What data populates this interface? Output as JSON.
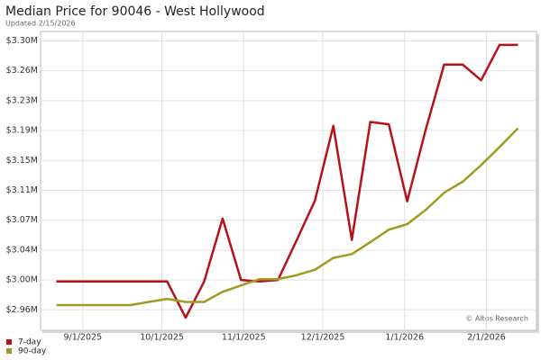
{
  "chart_data": {
    "type": "line",
    "title": "Median Price for 90046 - West Hollywood",
    "subtitle": "Updated 2/15/2026",
    "annotation": "© Altos Research",
    "x": [
      "8/22/2025",
      "8/29/2025",
      "9/5/2025",
      "9/12/2025",
      "9/19/2025",
      "9/26/2025",
      "10/3/2025",
      "10/10/2025",
      "10/17/2025",
      "10/24/2025",
      "10/31/2025",
      "11/7/2025",
      "11/14/2025",
      "11/21/2025",
      "11/28/2025",
      "12/5/2025",
      "12/12/2025",
      "12/19/2025",
      "12/26/2025",
      "1/2/2026",
      "1/9/2026",
      "1/16/2026",
      "1/23/2026",
      "1/30/2026",
      "2/6/2026",
      "2/13/2026"
    ],
    "series": [
      {
        "name": "7-day",
        "color": "#b5121b",
        "values": [
          2.996,
          2.996,
          2.996,
          2.996,
          2.996,
          2.996,
          2.996,
          2.95,
          2.996,
          3.076,
          2.998,
          2.996,
          2.998,
          3.048,
          3.099,
          3.194,
          3.049,
          3.199,
          3.196,
          3.098,
          3.189,
          3.272,
          3.272,
          3.252,
          3.297,
          3.297
        ]
      },
      {
        "name": "90-day",
        "color": "#a09a1e",
        "values": [
          2.966,
          2.966,
          2.966,
          2.966,
          2.966,
          2.97,
          2.974,
          2.97,
          2.97,
          2.983,
          2.991,
          2.999,
          2.999,
          3.004,
          3.011,
          3.026,
          3.031,
          3.046,
          3.062,
          3.069,
          3.087,
          3.109,
          3.123,
          3.144,
          3.167,
          3.191
        ]
      }
    ],
    "xlim": [
      "8/16/2025",
      "2/20/2026"
    ],
    "xticks": [
      "9/1/2025",
      "10/1/2025",
      "11/1/2025",
      "12/1/2025",
      "1/1/2026",
      "2/1/2026"
    ],
    "ylim": [
      2.934,
      3.314
    ],
    "yticks": [
      {
        "value": 2.96,
        "label": "$2.96M"
      },
      {
        "value": 2.998,
        "label": "$3.00M"
      },
      {
        "value": 3.036,
        "label": "$3.04M"
      },
      {
        "value": 3.074,
        "label": "$3.07M"
      },
      {
        "value": 3.112,
        "label": "$3.11M"
      },
      {
        "value": 3.15,
        "label": "$3.15M"
      },
      {
        "value": 3.188,
        "label": "$3.19M"
      },
      {
        "value": 3.226,
        "label": "$3.23M"
      },
      {
        "value": 3.264,
        "label": "$3.26M"
      },
      {
        "value": 3.302,
        "label": "$3.30M"
      }
    ],
    "grid": true,
    "legend": "bottom-left"
  }
}
